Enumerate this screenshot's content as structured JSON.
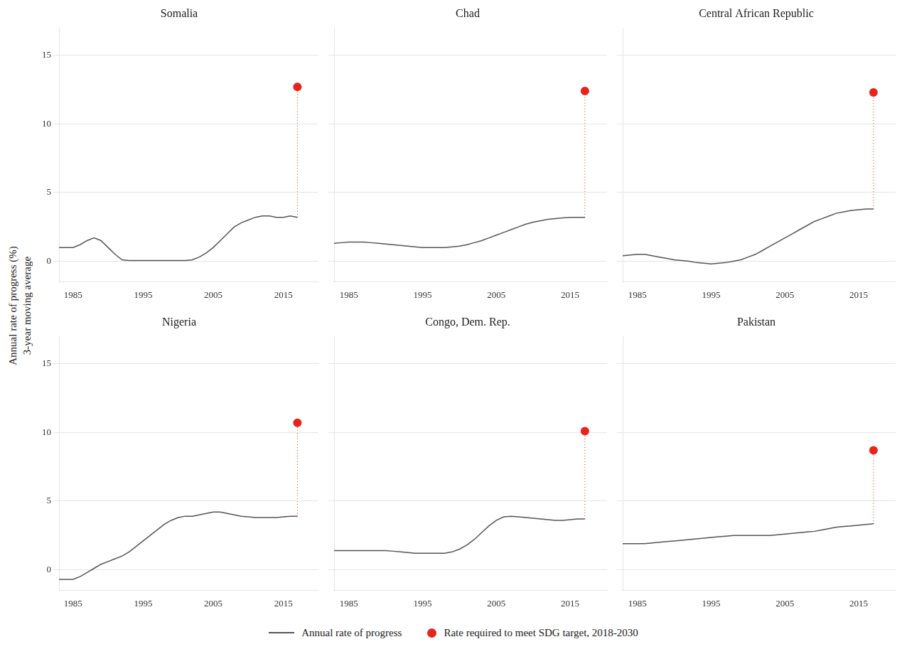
{
  "chart_data": [
    {
      "type": "line",
      "title": "Somalia",
      "x": [
        1983,
        1984,
        1985,
        1986,
        1987,
        1988,
        1989,
        1990,
        1991,
        1992,
        1993,
        1994,
        1995,
        1996,
        1997,
        1998,
        1999,
        2000,
        2001,
        2002,
        2003,
        2004,
        2005,
        2006,
        2007,
        2008,
        2009,
        2010,
        2011,
        2012,
        2013,
        2014,
        2015,
        2016,
        2017
      ],
      "series": [
        {
          "name": "Annual rate of progress",
          "color": "#555555",
          "values": [
            1.0,
            1.0,
            1.0,
            1.2,
            1.5,
            1.7,
            1.5,
            1.0,
            0.5,
            0.1,
            0.05,
            0.05,
            0.05,
            0.05,
            0.05,
            0.05,
            0.05,
            0.05,
            0.05,
            0.1,
            0.3,
            0.6,
            1.0,
            1.5,
            2.0,
            2.5,
            2.8,
            3.0,
            3.2,
            3.3,
            3.3,
            3.2,
            3.2,
            3.3,
            3.2
          ]
        },
        {
          "name": "Rate required to meet SDG target, 2018-2030",
          "color": "#e8231a",
          "type": "scatter",
          "x": [
            2017
          ],
          "values": [
            12.7
          ]
        }
      ],
      "xlim": [
        1983,
        2020
      ],
      "xticks": [
        1985,
        1995,
        2005,
        2015
      ],
      "ylim": [
        -1.5,
        17
      ],
      "yticks": [
        0,
        5,
        10,
        15
      ],
      "grid": "y",
      "ylabel": [
        "Annual rate of progress (%)",
        "3-year moving average"
      ],
      "legend": "bottom"
    },
    {
      "type": "line",
      "title": "Chad",
      "x": [
        1983,
        1984,
        1985,
        1986,
        1987,
        1988,
        1989,
        1990,
        1991,
        1992,
        1993,
        1994,
        1995,
        1996,
        1997,
        1998,
        1999,
        2000,
        2001,
        2002,
        2003,
        2004,
        2005,
        2006,
        2007,
        2008,
        2009,
        2010,
        2011,
        2012,
        2013,
        2014,
        2015,
        2016,
        2017
      ],
      "series": [
        {
          "name": "Annual rate of progress",
          "color": "#555555",
          "values": [
            1.3,
            1.35,
            1.4,
            1.4,
            1.4,
            1.35,
            1.3,
            1.25,
            1.2,
            1.15,
            1.1,
            1.05,
            1.0,
            1.0,
            1.0,
            1.0,
            1.05,
            1.1,
            1.2,
            1.35,
            1.5,
            1.7,
            1.9,
            2.1,
            2.3,
            2.5,
            2.7,
            2.85,
            2.95,
            3.05,
            3.1,
            3.15,
            3.2,
            3.2,
            3.2
          ]
        },
        {
          "name": "Rate required to meet SDG target, 2018-2030",
          "color": "#e8231a",
          "type": "scatter",
          "x": [
            2017
          ],
          "values": [
            12.4
          ]
        }
      ],
      "xlim": [
        1983,
        2020
      ],
      "xticks": [
        1985,
        1995,
        2005,
        2015
      ],
      "ylim": [
        -1.5,
        17
      ],
      "yticks": [
        0,
        5,
        10,
        15
      ],
      "grid": "y",
      "tick_labels": "x"
    },
    {
      "type": "line",
      "title": "Central African Republic",
      "x": [
        1983,
        1984,
        1985,
        1986,
        1987,
        1988,
        1989,
        1990,
        1991,
        1992,
        1993,
        1994,
        1995,
        1996,
        1997,
        1998,
        1999,
        2000,
        2001,
        2002,
        2003,
        2004,
        2005,
        2006,
        2007,
        2008,
        2009,
        2010,
        2011,
        2012,
        2013,
        2014,
        2015,
        2016,
        2017
      ],
      "series": [
        {
          "name": "Annual rate of progress",
          "color": "#555555",
          "values": [
            0.4,
            0.45,
            0.5,
            0.5,
            0.4,
            0.3,
            0.2,
            0.1,
            0.05,
            0.0,
            -0.1,
            -0.15,
            -0.2,
            -0.15,
            -0.1,
            0.0,
            0.1,
            0.3,
            0.5,
            0.8,
            1.1,
            1.4,
            1.7,
            2.0,
            2.3,
            2.6,
            2.9,
            3.1,
            3.3,
            3.5,
            3.6,
            3.7,
            3.75,
            3.8,
            3.8
          ]
        },
        {
          "name": "Rate required to meet SDG target, 2018-2030",
          "color": "#e8231a",
          "type": "scatter",
          "x": [
            2017
          ],
          "values": [
            12.3
          ]
        }
      ],
      "xlim": [
        1983,
        2020
      ],
      "xticks": [
        1985,
        1995,
        2005,
        2015
      ],
      "ylim": [
        -1.5,
        17
      ],
      "yticks": [
        0,
        5,
        10,
        15
      ],
      "grid": "y",
      "tick_labels": "x"
    },
    {
      "type": "line",
      "title": "Nigeria",
      "x": [
        1983,
        1984,
        1985,
        1986,
        1987,
        1988,
        1989,
        1990,
        1991,
        1992,
        1993,
        1994,
        1995,
        1996,
        1997,
        1998,
        1999,
        2000,
        2001,
        2002,
        2003,
        2004,
        2005,
        2006,
        2007,
        2008,
        2009,
        2010,
        2011,
        2012,
        2013,
        2014,
        2015,
        2016,
        2017
      ],
      "series": [
        {
          "name": "Annual rate of progress",
          "color": "#555555",
          "values": [
            -0.7,
            -0.7,
            -0.7,
            -0.5,
            -0.2,
            0.1,
            0.4,
            0.6,
            0.8,
            1.0,
            1.3,
            1.7,
            2.1,
            2.5,
            2.9,
            3.3,
            3.6,
            3.8,
            3.9,
            3.9,
            4.0,
            4.1,
            4.2,
            4.2,
            4.1,
            4.0,
            3.9,
            3.85,
            3.8,
            3.8,
            3.8,
            3.8,
            3.85,
            3.9,
            3.9
          ]
        },
        {
          "name": "Rate required to meet SDG target, 2018-2030",
          "color": "#e8231a",
          "type": "scatter",
          "x": [
            2017
          ],
          "values": [
            10.7
          ]
        }
      ],
      "xlim": [
        1983,
        2020
      ],
      "xticks": [
        1985,
        1995,
        2005,
        2015
      ],
      "ylim": [
        -1.5,
        17
      ],
      "yticks": [
        0,
        5,
        10,
        15
      ],
      "grid": "y"
    },
    {
      "type": "line",
      "title": "Congo, Dem. Rep.",
      "x": [
        1983,
        1984,
        1985,
        1986,
        1987,
        1988,
        1989,
        1990,
        1991,
        1992,
        1993,
        1994,
        1995,
        1996,
        1997,
        1998,
        1999,
        2000,
        2001,
        2002,
        2003,
        2004,
        2005,
        2006,
        2007,
        2008,
        2009,
        2010,
        2011,
        2012,
        2013,
        2014,
        2015,
        2016,
        2017
      ],
      "series": [
        {
          "name": "Annual rate of progress",
          "color": "#555555",
          "values": [
            1.4,
            1.4,
            1.4,
            1.4,
            1.4,
            1.4,
            1.4,
            1.4,
            1.35,
            1.3,
            1.25,
            1.2,
            1.2,
            1.2,
            1.2,
            1.2,
            1.3,
            1.5,
            1.8,
            2.2,
            2.7,
            3.2,
            3.6,
            3.85,
            3.9,
            3.85,
            3.8,
            3.75,
            3.7,
            3.65,
            3.6,
            3.6,
            3.65,
            3.7,
            3.7
          ]
        },
        {
          "name": "Rate required to meet SDG target, 2018-2030",
          "color": "#e8231a",
          "type": "scatter",
          "x": [
            2017
          ],
          "values": [
            10.1
          ]
        }
      ],
      "xlim": [
        1983,
        2020
      ],
      "xticks": [
        1985,
        1995,
        2005,
        2015
      ],
      "ylim": [
        -1.5,
        17
      ],
      "yticks": [
        0,
        5,
        10,
        15
      ],
      "grid": "y",
      "tick_labels": "x"
    },
    {
      "type": "line",
      "title": "Pakistan",
      "x": [
        1983,
        1984,
        1985,
        1986,
        1987,
        1988,
        1989,
        1990,
        1991,
        1992,
        1993,
        1994,
        1995,
        1996,
        1997,
        1998,
        1999,
        2000,
        2001,
        2002,
        2003,
        2004,
        2005,
        2006,
        2007,
        2008,
        2009,
        2010,
        2011,
        2012,
        2013,
        2014,
        2015,
        2016,
        2017
      ],
      "series": [
        {
          "name": "Annual rate of progress",
          "color": "#555555",
          "values": [
            1.9,
            1.9,
            1.9,
            1.9,
            1.95,
            2.0,
            2.05,
            2.1,
            2.15,
            2.2,
            2.25,
            2.3,
            2.35,
            2.4,
            2.45,
            2.5,
            2.5,
            2.5,
            2.5,
            2.5,
            2.5,
            2.55,
            2.6,
            2.65,
            2.7,
            2.75,
            2.8,
            2.9,
            3.0,
            3.1,
            3.15,
            3.2,
            3.25,
            3.3,
            3.35
          ]
        },
        {
          "name": "Rate required to meet SDG target, 2018-2030",
          "color": "#e8231a",
          "type": "scatter",
          "x": [
            2017
          ],
          "values": [
            8.7
          ]
        }
      ],
      "xlim": [
        1983,
        2020
      ],
      "xticks": [
        1985,
        1995,
        2005,
        2015
      ],
      "ylim": [
        -1.5,
        17
      ],
      "yticks": [
        0,
        5,
        10,
        15
      ],
      "grid": "y",
      "tick_labels": "x"
    }
  ]
}
